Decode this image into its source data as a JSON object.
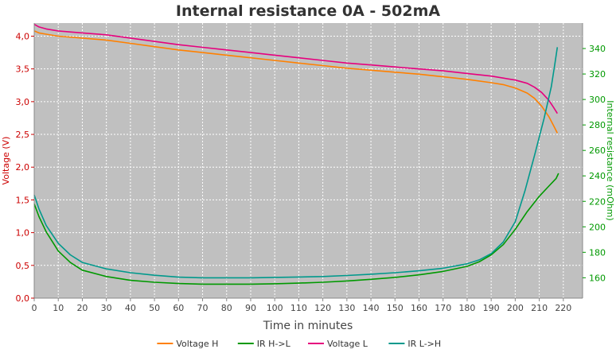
{
  "chart_data": {
    "type": "line",
    "title": "Internal resistance  0A - 502mA",
    "xlabel": "Time in minutes",
    "ylabel_left": "Voltage (V)",
    "ylabel_right": "Internal resistance (mOhm)",
    "xlim": [
      0,
      228
    ],
    "ylim_left": [
      0,
      4.2
    ],
    "ylim_right": [
      144,
      360
    ],
    "x_ticks": [
      0,
      10,
      20,
      30,
      40,
      50,
      60,
      70,
      80,
      90,
      100,
      110,
      120,
      130,
      140,
      150,
      160,
      170,
      180,
      190,
      200,
      210,
      220
    ],
    "y_ticks_left": [
      "0,0",
      "0,5",
      "1,0",
      "1,5",
      "2,0",
      "2,5",
      "3,0",
      "3,5",
      "4,0"
    ],
    "y_ticks_left_values": [
      0,
      0.5,
      1.0,
      1.5,
      2.0,
      2.5,
      3.0,
      3.5,
      4.0
    ],
    "y_ticks_right": [
      "160",
      "180",
      "200",
      "220",
      "240",
      "260",
      "280",
      "300",
      "320",
      "340"
    ],
    "y_ticks_right_values": [
      160,
      180,
      200,
      220,
      240,
      260,
      280,
      300,
      320,
      340
    ],
    "grid": true,
    "legend_position": "bottom",
    "series": [
      {
        "name": "Voltage H",
        "axis": "left",
        "color": "#ff8000",
        "x": [
          0,
          2,
          5,
          10,
          20,
          30,
          40,
          50,
          60,
          70,
          80,
          90,
          100,
          110,
          120,
          130,
          140,
          150,
          160,
          170,
          180,
          190,
          195,
          200,
          205,
          208,
          211,
          214,
          216,
          217.5
        ],
        "y": [
          4.08,
          4.05,
          4.03,
          4.0,
          3.97,
          3.94,
          3.89,
          3.84,
          3.79,
          3.75,
          3.71,
          3.67,
          3.63,
          3.59,
          3.55,
          3.51,
          3.48,
          3.45,
          3.42,
          3.38,
          3.34,
          3.29,
          3.26,
          3.21,
          3.13,
          3.05,
          2.93,
          2.77,
          2.63,
          2.52
        ]
      },
      {
        "name": "IR H->L",
        "axis": "right",
        "color": "#009900",
        "x": [
          0,
          2,
          5,
          10,
          15,
          20,
          30,
          40,
          50,
          60,
          70,
          80,
          90,
          100,
          110,
          120,
          130,
          140,
          150,
          160,
          170,
          180,
          185,
          190,
          195,
          200,
          205,
          210,
          214,
          217,
          218
        ],
        "y": [
          218,
          208,
          196,
          181,
          172,
          166,
          161,
          158,
          156.5,
          155.5,
          155,
          155,
          155,
          155.3,
          155.8,
          156.5,
          157.5,
          158.8,
          160.3,
          162.3,
          165,
          169,
          172.5,
          178,
          186,
          198,
          212,
          224,
          232,
          238,
          242
        ]
      },
      {
        "name": "Voltage L",
        "axis": "left",
        "color": "#e6007e",
        "x": [
          0,
          2,
          5,
          10,
          20,
          30,
          40,
          50,
          60,
          70,
          80,
          90,
          100,
          110,
          120,
          130,
          140,
          150,
          160,
          170,
          180,
          190,
          195,
          200,
          205,
          208,
          211,
          214,
          216,
          217.5
        ],
        "y": [
          4.18,
          4.14,
          4.11,
          4.08,
          4.05,
          4.02,
          3.97,
          3.92,
          3.87,
          3.83,
          3.79,
          3.75,
          3.71,
          3.67,
          3.63,
          3.59,
          3.56,
          3.53,
          3.5,
          3.47,
          3.43,
          3.39,
          3.36,
          3.33,
          3.28,
          3.22,
          3.14,
          3.02,
          2.91,
          2.82
        ]
      },
      {
        "name": "IR L->H",
        "axis": "right",
        "color": "#00998c",
        "x": [
          0,
          2,
          5,
          10,
          15,
          20,
          30,
          40,
          50,
          60,
          70,
          80,
          90,
          100,
          110,
          120,
          130,
          140,
          150,
          160,
          170,
          180,
          185,
          190,
          195,
          200,
          204,
          208,
          212,
          215,
          216.5,
          217.5
        ],
        "y": [
          225,
          214,
          201,
          187,
          178,
          172,
          167,
          164,
          162,
          160.5,
          160,
          160,
          160,
          160.3,
          160.6,
          161,
          161.8,
          162.8,
          164,
          165.5,
          167.5,
          171,
          174,
          179,
          188,
          204,
          228,
          256,
          285,
          310,
          328,
          341
        ]
      }
    ]
  }
}
